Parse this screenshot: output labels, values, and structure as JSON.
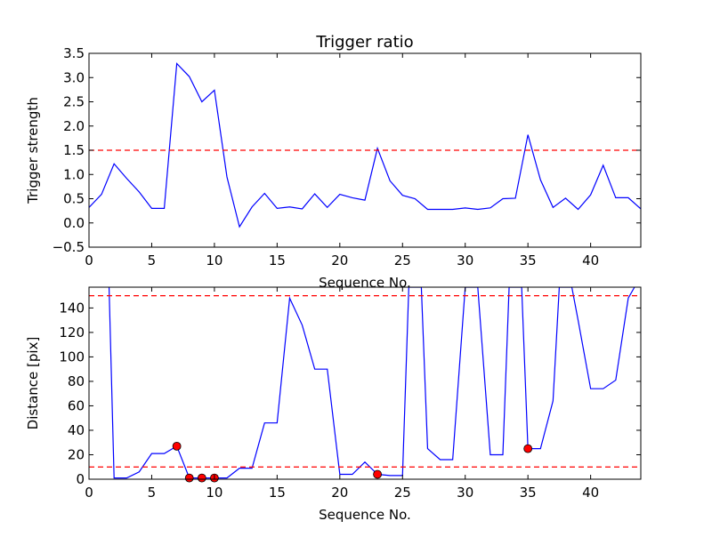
{
  "figure_title": "Trigger ratio",
  "chart_data": [
    {
      "type": "line",
      "title": "Trigger ratio",
      "xlabel": "Sequence No.",
      "ylabel": "Trigger strength",
      "xlim": [
        0,
        44
      ],
      "ylim": [
        -0.5,
        3.5
      ],
      "xticks": [
        0,
        5,
        10,
        15,
        20,
        25,
        30,
        35,
        40
      ],
      "xtick_labels": [
        "0",
        "5",
        "10",
        "15",
        "20",
        "25",
        "30",
        "35",
        "40"
      ],
      "yticks": [
        -0.5,
        0.0,
        0.5,
        1.0,
        1.5,
        2.0,
        2.5,
        3.0,
        3.5
      ],
      "ytick_labels": [
        "−0.5",
        "0.0",
        "0.5",
        "1.0",
        "1.5",
        "2.0",
        "2.5",
        "3.0",
        "3.5"
      ],
      "grid": false,
      "series": [
        {
          "color": "#0000ff",
          "x": [
            0,
            1,
            2,
            3,
            4,
            5,
            6,
            7,
            8,
            9,
            10,
            11,
            12,
            13,
            14,
            15,
            16,
            17,
            18,
            19,
            20,
            21,
            22,
            23,
            24,
            25,
            26,
            27,
            28,
            29,
            30,
            31,
            32,
            33,
            34,
            35,
            36,
            37,
            38,
            39,
            40,
            41,
            42,
            43,
            44
          ],
          "values": [
            0.32,
            0.59,
            1.22,
            0.92,
            0.64,
            0.3,
            0.3,
            3.29,
            3.02,
            2.5,
            2.74,
            0.95,
            -0.08,
            0.33,
            0.61,
            0.3,
            0.33,
            0.29,
            0.6,
            0.32,
            0.59,
            0.52,
            0.47,
            1.54,
            0.87,
            0.57,
            0.5,
            0.28,
            0.28,
            0.28,
            0.31,
            0.28,
            0.31,
            0.5,
            0.51,
            1.82,
            0.89,
            0.32,
            0.51,
            0.28,
            0.58,
            1.19,
            0.52,
            0.52,
            0.29
          ]
        }
      ],
      "hlines": [
        {
          "y": 1.5,
          "color": "#ff0000",
          "style": "dashed"
        }
      ]
    },
    {
      "type": "line",
      "title": "",
      "xlabel": "Sequence No.",
      "ylabel": "Distance [pix]",
      "xlim": [
        0,
        44
      ],
      "ylim": [
        0,
        157
      ],
      "xticks": [
        0,
        5,
        10,
        15,
        20,
        25,
        30,
        35,
        40
      ],
      "xtick_labels": [
        "0",
        "5",
        "10",
        "15",
        "20",
        "25",
        "30",
        "35",
        "40"
      ],
      "yticks": [
        0,
        20,
        40,
        60,
        80,
        100,
        120,
        140
      ],
      "ytick_labels": [
        "0",
        "20",
        "40",
        "60",
        "80",
        "100",
        "120",
        "140"
      ],
      "grid": false,
      "series": [
        {
          "color": "#0000ff",
          "x": [
            1.6,
            2,
            3,
            4,
            5,
            6,
            7,
            8,
            9,
            10,
            11,
            12,
            13,
            14,
            15,
            16,
            17,
            18,
            19,
            20,
            21,
            22,
            23,
            24,
            25,
            25.5,
            26.5,
            27,
            28,
            29,
            30,
            31,
            32,
            33,
            33.5,
            34.5,
            35,
            36,
            37,
            37.5,
            38.5,
            39,
            40,
            41,
            42,
            43,
            43.5
          ],
          "values": [
            157,
            1,
            1,
            6,
            21,
            21,
            27,
            1,
            1,
            1,
            1,
            9,
            9,
            46,
            46,
            148,
            126,
            90,
            90,
            4,
            4,
            14,
            4,
            3,
            3,
            157,
            157,
            25,
            16,
            16,
            157,
            157,
            20,
            20,
            157,
            157,
            25,
            25,
            64,
            157,
            157,
            130,
            74,
            74,
            81,
            148,
            157
          ]
        }
      ],
      "markers": {
        "color": "#ff0000",
        "x": [
          7,
          8,
          9,
          10,
          23,
          35
        ],
        "y": [
          27,
          1,
          1,
          1,
          4,
          25
        ]
      },
      "hlines": [
        {
          "y": 150,
          "color": "#ff0000",
          "style": "dashed"
        },
        {
          "y": 10,
          "color": "#ff0000",
          "style": "dashed"
        }
      ]
    }
  ]
}
